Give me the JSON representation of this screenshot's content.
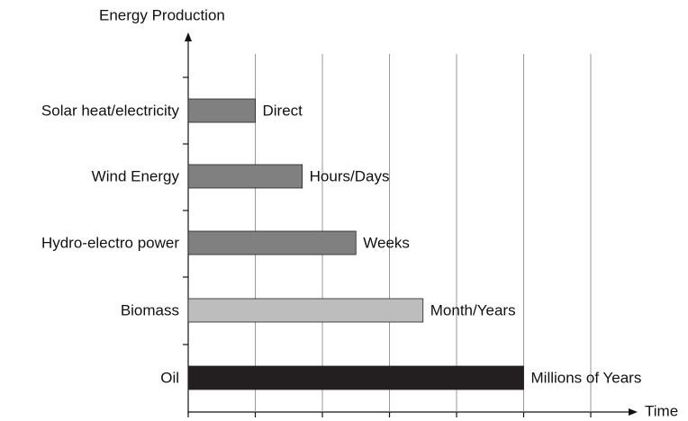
{
  "chart_data": {
    "type": "barh",
    "ylabel": "Energy Production",
    "xlabel": "Time",
    "categories": [
      "Solar heat/electricity",
      "Wind Energy",
      "Hydro-electro power",
      "Biomass",
      "Oil"
    ],
    "values": [
      1,
      1.7,
      2.5,
      3.5,
      5
    ],
    "bar_labels": [
      "Direct",
      "Hours/Days",
      "Weeks",
      "Month/Years",
      "Millions of Years"
    ],
    "colors": [
      "#808080",
      "#808080",
      "#808080",
      "#bdbdbd",
      "#231f20"
    ],
    "xlim": [
      0,
      6.6
    ],
    "xticks": [
      0,
      1,
      2,
      3,
      4,
      5,
      6
    ],
    "grid": true
  }
}
